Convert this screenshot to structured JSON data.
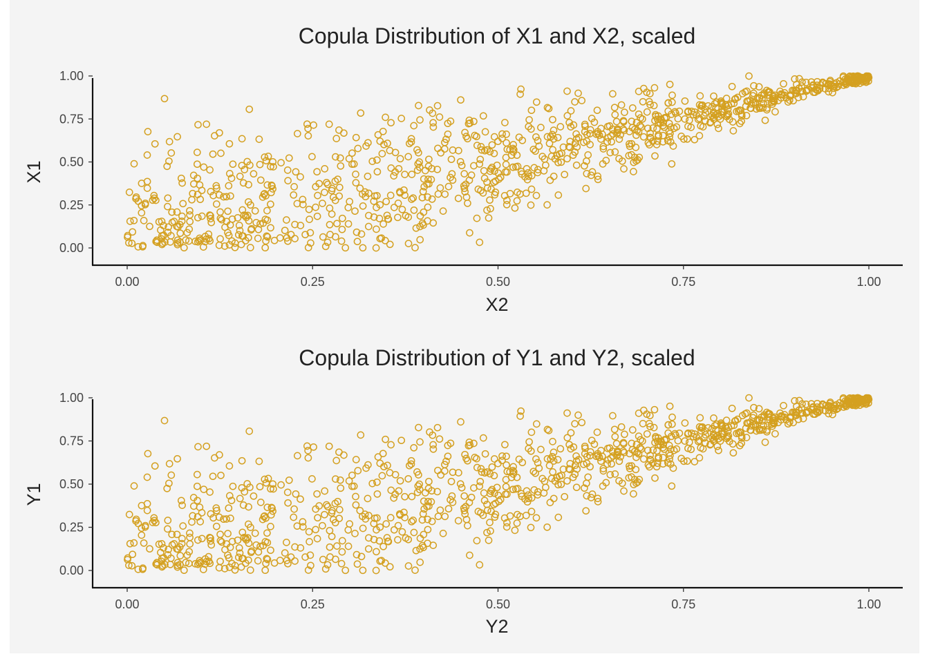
{
  "colors": {
    "point": "#D4A020",
    "panel": "#F4F4F4",
    "axis": "#111111"
  },
  "chart_data": [
    {
      "type": "scatter",
      "title": "Copula Distribution of X1 and X2, scaled",
      "xlabel": "X2",
      "ylabel": "X1",
      "xlim": [
        0,
        1
      ],
      "ylim": [
        0,
        1
      ],
      "xticks": [
        "0.00",
        "0.25",
        "0.50",
        "0.75",
        "1.00"
      ],
      "yticks": [
        "0.00",
        "0.25",
        "0.50",
        "0.75",
        "1.00"
      ],
      "grid": false,
      "legend": "none",
      "n_points": 1000,
      "seed": 137
    },
    {
      "type": "scatter",
      "title": "Copula Distribution of Y1 and Y2, scaled",
      "xlabel": "Y2",
      "ylabel": "Y1",
      "xlim": [
        0,
        1
      ],
      "ylim": [
        0,
        1
      ],
      "xticks": [
        "0.00",
        "0.25",
        "0.50",
        "0.75",
        "1.00"
      ],
      "yticks": [
        "0.00",
        "0.25",
        "0.50",
        "0.75",
        "1.00"
      ],
      "grid": false,
      "legend": "none",
      "n_points": 1000,
      "seed": 137
    }
  ]
}
